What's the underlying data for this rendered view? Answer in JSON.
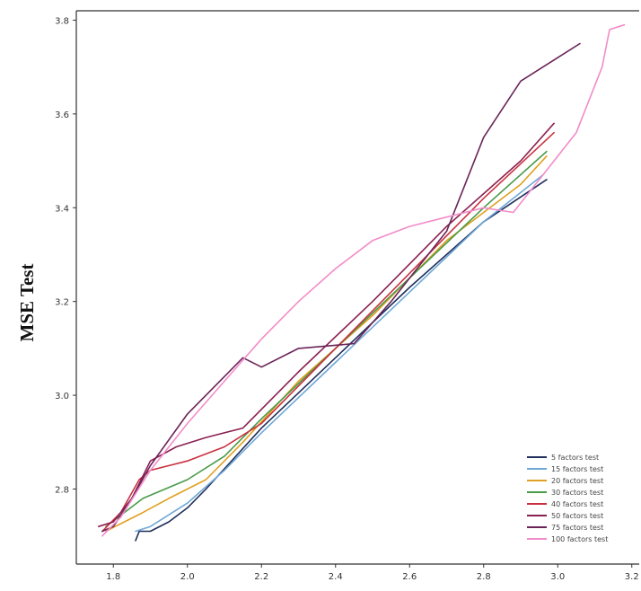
{
  "chart_data": {
    "type": "line",
    "title": "",
    "xlabel": "",
    "ylabel": "MSE Test",
    "xlim": [
      1.7,
      3.22
    ],
    "ylim": [
      2.64,
      3.82
    ],
    "xticks": [
      "1.8",
      "2.0",
      "2.2",
      "2.4",
      "2.6",
      "2.8",
      "3.0",
      "3.2"
    ],
    "yticks": [
      "2.8",
      "3.0",
      "3.2",
      "3.4",
      "3.6",
      "3.8"
    ],
    "xtick_values": [
      1.8,
      2.0,
      2.2,
      2.4,
      2.6,
      2.8,
      3.0,
      3.2
    ],
    "ytick_values": [
      2.8,
      3.0,
      3.2,
      3.4,
      3.6,
      3.8
    ],
    "grid": false,
    "legend_position": "bottom-right",
    "series": [
      {
        "name": "5 factors test",
        "color": "#1f2f5a",
        "points": [
          [
            1.86,
            2.69
          ],
          [
            1.87,
            2.71
          ],
          [
            1.9,
            2.71
          ],
          [
            1.95,
            2.73
          ],
          [
            2.0,
            2.76
          ],
          [
            2.05,
            2.8
          ],
          [
            2.2,
            2.93
          ],
          [
            2.4,
            3.08
          ],
          [
            2.6,
            3.23
          ],
          [
            2.8,
            3.37
          ],
          [
            2.97,
            3.46
          ]
        ]
      },
      {
        "name": "15 factors test",
        "color": "#6fa8d6",
        "points": [
          [
            1.86,
            2.71
          ],
          [
            1.9,
            2.72
          ],
          [
            2.0,
            2.77
          ],
          [
            2.1,
            2.84
          ],
          [
            2.2,
            2.92
          ],
          [
            2.4,
            3.07
          ],
          [
            2.6,
            3.22
          ],
          [
            2.8,
            3.37
          ],
          [
            2.96,
            3.47
          ]
        ]
      },
      {
        "name": "20 factors test",
        "color": "#e0a020",
        "points": [
          [
            1.78,
            2.71
          ],
          [
            1.83,
            2.73
          ],
          [
            1.88,
            2.75
          ],
          [
            1.95,
            2.78
          ],
          [
            2.05,
            2.82
          ],
          [
            2.15,
            2.9
          ],
          [
            2.3,
            3.03
          ],
          [
            2.5,
            3.17
          ],
          [
            2.7,
            3.33
          ],
          [
            2.9,
            3.45
          ],
          [
            2.97,
            3.51
          ]
        ]
      },
      {
        "name": "30 factors test",
        "color": "#4a9a4a",
        "points": [
          [
            1.78,
            2.72
          ],
          [
            1.83,
            2.75
          ],
          [
            1.88,
            2.78
          ],
          [
            2.0,
            2.82
          ],
          [
            2.1,
            2.87
          ],
          [
            2.2,
            2.95
          ],
          [
            2.4,
            3.1
          ],
          [
            2.6,
            3.25
          ],
          [
            2.8,
            3.4
          ],
          [
            2.97,
            3.52
          ]
        ]
      },
      {
        "name": "40 factors test",
        "color": "#c83240",
        "points": [
          [
            1.77,
            2.71
          ],
          [
            1.82,
            2.75
          ],
          [
            1.87,
            2.82
          ],
          [
            1.9,
            2.84
          ],
          [
            2.0,
            2.86
          ],
          [
            2.1,
            2.89
          ],
          [
            2.2,
            2.94
          ],
          [
            2.4,
            3.1
          ],
          [
            2.6,
            3.26
          ],
          [
            2.8,
            3.42
          ],
          [
            2.99,
            3.56
          ]
        ]
      },
      {
        "name": "50 factors test",
        "color": "#8a2050",
        "points": [
          [
            1.76,
            2.72
          ],
          [
            1.8,
            2.73
          ],
          [
            1.85,
            2.78
          ],
          [
            1.9,
            2.86
          ],
          [
            1.97,
            2.89
          ],
          [
            2.05,
            2.91
          ],
          [
            2.15,
            2.93
          ],
          [
            2.3,
            3.05
          ],
          [
            2.5,
            3.2
          ],
          [
            2.7,
            3.36
          ],
          [
            2.9,
            3.5
          ],
          [
            2.99,
            3.58
          ]
        ]
      },
      {
        "name": "75 factors test",
        "color": "#6a2458",
        "points": [
          [
            1.77,
            2.71
          ],
          [
            1.8,
            2.72
          ],
          [
            1.85,
            2.78
          ],
          [
            1.9,
            2.85
          ],
          [
            2.0,
            2.96
          ],
          [
            2.1,
            3.04
          ],
          [
            2.15,
            3.08
          ],
          [
            2.2,
            3.06
          ],
          [
            2.3,
            3.1
          ],
          [
            2.45,
            3.11
          ],
          [
            2.55,
            3.2
          ],
          [
            2.7,
            3.35
          ],
          [
            2.8,
            3.55
          ],
          [
            2.9,
            3.67
          ],
          [
            3.0,
            3.72
          ],
          [
            3.06,
            3.75
          ]
        ]
      },
      {
        "name": "100 factors test",
        "color": "#f28cc8",
        "points": [
          [
            1.77,
            2.7
          ],
          [
            1.82,
            2.74
          ],
          [
            1.9,
            2.84
          ],
          [
            2.0,
            2.94
          ],
          [
            2.1,
            3.03
          ],
          [
            2.2,
            3.12
          ],
          [
            2.3,
            3.2
          ],
          [
            2.4,
            3.27
          ],
          [
            2.5,
            3.33
          ],
          [
            2.6,
            3.36
          ],
          [
            2.7,
            3.38
          ],
          [
            2.8,
            3.4
          ],
          [
            2.88,
            3.39
          ],
          [
            2.96,
            3.47
          ],
          [
            3.05,
            3.56
          ],
          [
            3.12,
            3.7
          ],
          [
            3.14,
            3.78
          ],
          [
            3.18,
            3.79
          ]
        ]
      }
    ]
  }
}
